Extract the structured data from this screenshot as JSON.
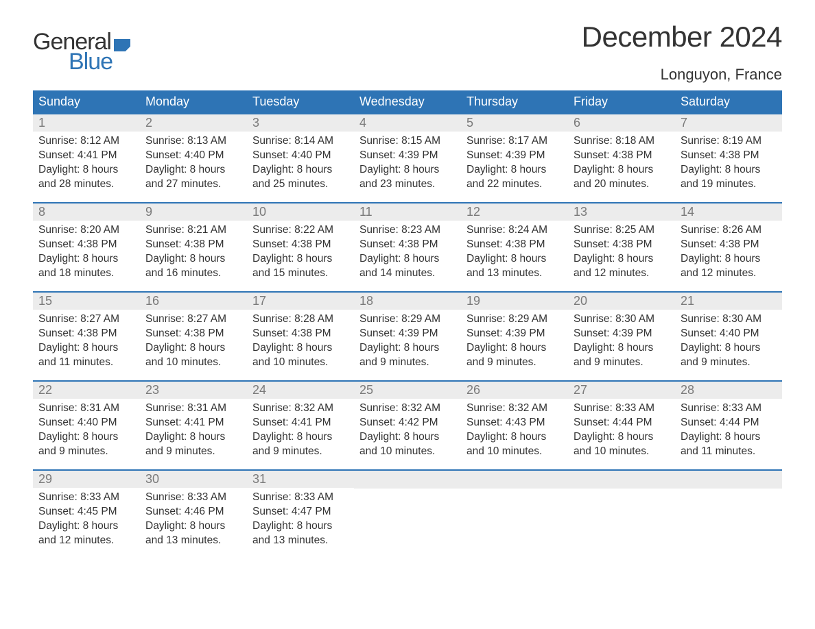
{
  "branding": {
    "general": "General",
    "blue": "Blue"
  },
  "header": {
    "month_title": "December 2024",
    "location": "Longuyon, France"
  },
  "style": {
    "accent_color": "#2e74b5",
    "daynum_bg": "#ececec",
    "daynum_color": "#7a7a7a",
    "text_color": "#333333",
    "bg_color": "#ffffff",
    "title_fontsize": 42,
    "location_fontsize": 22,
    "weekday_fontsize": 18,
    "body_fontsize": 15.5
  },
  "weekdays": [
    "Sunday",
    "Monday",
    "Tuesday",
    "Wednesday",
    "Thursday",
    "Friday",
    "Saturday"
  ],
  "weeks": [
    [
      {
        "n": "1",
        "sunrise": "Sunrise: 8:12 AM",
        "sunset": "Sunset: 4:41 PM",
        "d1": "Daylight: 8 hours",
        "d2": "and 28 minutes."
      },
      {
        "n": "2",
        "sunrise": "Sunrise: 8:13 AM",
        "sunset": "Sunset: 4:40 PM",
        "d1": "Daylight: 8 hours",
        "d2": "and 27 minutes."
      },
      {
        "n": "3",
        "sunrise": "Sunrise: 8:14 AM",
        "sunset": "Sunset: 4:40 PM",
        "d1": "Daylight: 8 hours",
        "d2": "and 25 minutes."
      },
      {
        "n": "4",
        "sunrise": "Sunrise: 8:15 AM",
        "sunset": "Sunset: 4:39 PM",
        "d1": "Daylight: 8 hours",
        "d2": "and 23 minutes."
      },
      {
        "n": "5",
        "sunrise": "Sunrise: 8:17 AM",
        "sunset": "Sunset: 4:39 PM",
        "d1": "Daylight: 8 hours",
        "d2": "and 22 minutes."
      },
      {
        "n": "6",
        "sunrise": "Sunrise: 8:18 AM",
        "sunset": "Sunset: 4:38 PM",
        "d1": "Daylight: 8 hours",
        "d2": "and 20 minutes."
      },
      {
        "n": "7",
        "sunrise": "Sunrise: 8:19 AM",
        "sunset": "Sunset: 4:38 PM",
        "d1": "Daylight: 8 hours",
        "d2": "and 19 minutes."
      }
    ],
    [
      {
        "n": "8",
        "sunrise": "Sunrise: 8:20 AM",
        "sunset": "Sunset: 4:38 PM",
        "d1": "Daylight: 8 hours",
        "d2": "and 18 minutes."
      },
      {
        "n": "9",
        "sunrise": "Sunrise: 8:21 AM",
        "sunset": "Sunset: 4:38 PM",
        "d1": "Daylight: 8 hours",
        "d2": "and 16 minutes."
      },
      {
        "n": "10",
        "sunrise": "Sunrise: 8:22 AM",
        "sunset": "Sunset: 4:38 PM",
        "d1": "Daylight: 8 hours",
        "d2": "and 15 minutes."
      },
      {
        "n": "11",
        "sunrise": "Sunrise: 8:23 AM",
        "sunset": "Sunset: 4:38 PM",
        "d1": "Daylight: 8 hours",
        "d2": "and 14 minutes."
      },
      {
        "n": "12",
        "sunrise": "Sunrise: 8:24 AM",
        "sunset": "Sunset: 4:38 PM",
        "d1": "Daylight: 8 hours",
        "d2": "and 13 minutes."
      },
      {
        "n": "13",
        "sunrise": "Sunrise: 8:25 AM",
        "sunset": "Sunset: 4:38 PM",
        "d1": "Daylight: 8 hours",
        "d2": "and 12 minutes."
      },
      {
        "n": "14",
        "sunrise": "Sunrise: 8:26 AM",
        "sunset": "Sunset: 4:38 PM",
        "d1": "Daylight: 8 hours",
        "d2": "and 12 minutes."
      }
    ],
    [
      {
        "n": "15",
        "sunrise": "Sunrise: 8:27 AM",
        "sunset": "Sunset: 4:38 PM",
        "d1": "Daylight: 8 hours",
        "d2": "and 11 minutes."
      },
      {
        "n": "16",
        "sunrise": "Sunrise: 8:27 AM",
        "sunset": "Sunset: 4:38 PM",
        "d1": "Daylight: 8 hours",
        "d2": "and 10 minutes."
      },
      {
        "n": "17",
        "sunrise": "Sunrise: 8:28 AM",
        "sunset": "Sunset: 4:38 PM",
        "d1": "Daylight: 8 hours",
        "d2": "and 10 minutes."
      },
      {
        "n": "18",
        "sunrise": "Sunrise: 8:29 AM",
        "sunset": "Sunset: 4:39 PM",
        "d1": "Daylight: 8 hours",
        "d2": "and 9 minutes."
      },
      {
        "n": "19",
        "sunrise": "Sunrise: 8:29 AM",
        "sunset": "Sunset: 4:39 PM",
        "d1": "Daylight: 8 hours",
        "d2": "and 9 minutes."
      },
      {
        "n": "20",
        "sunrise": "Sunrise: 8:30 AM",
        "sunset": "Sunset: 4:39 PM",
        "d1": "Daylight: 8 hours",
        "d2": "and 9 minutes."
      },
      {
        "n": "21",
        "sunrise": "Sunrise: 8:30 AM",
        "sunset": "Sunset: 4:40 PM",
        "d1": "Daylight: 8 hours",
        "d2": "and 9 minutes."
      }
    ],
    [
      {
        "n": "22",
        "sunrise": "Sunrise: 8:31 AM",
        "sunset": "Sunset: 4:40 PM",
        "d1": "Daylight: 8 hours",
        "d2": "and 9 minutes."
      },
      {
        "n": "23",
        "sunrise": "Sunrise: 8:31 AM",
        "sunset": "Sunset: 4:41 PM",
        "d1": "Daylight: 8 hours",
        "d2": "and 9 minutes."
      },
      {
        "n": "24",
        "sunrise": "Sunrise: 8:32 AM",
        "sunset": "Sunset: 4:41 PM",
        "d1": "Daylight: 8 hours",
        "d2": "and 9 minutes."
      },
      {
        "n": "25",
        "sunrise": "Sunrise: 8:32 AM",
        "sunset": "Sunset: 4:42 PM",
        "d1": "Daylight: 8 hours",
        "d2": "and 10 minutes."
      },
      {
        "n": "26",
        "sunrise": "Sunrise: 8:32 AM",
        "sunset": "Sunset: 4:43 PM",
        "d1": "Daylight: 8 hours",
        "d2": "and 10 minutes."
      },
      {
        "n": "27",
        "sunrise": "Sunrise: 8:33 AM",
        "sunset": "Sunset: 4:44 PM",
        "d1": "Daylight: 8 hours",
        "d2": "and 10 minutes."
      },
      {
        "n": "28",
        "sunrise": "Sunrise: 8:33 AM",
        "sunset": "Sunset: 4:44 PM",
        "d1": "Daylight: 8 hours",
        "d2": "and 11 minutes."
      }
    ],
    [
      {
        "n": "29",
        "sunrise": "Sunrise: 8:33 AM",
        "sunset": "Sunset: 4:45 PM",
        "d1": "Daylight: 8 hours",
        "d2": "and 12 minutes."
      },
      {
        "n": "30",
        "sunrise": "Sunrise: 8:33 AM",
        "sunset": "Sunset: 4:46 PM",
        "d1": "Daylight: 8 hours",
        "d2": "and 13 minutes."
      },
      {
        "n": "31",
        "sunrise": "Sunrise: 8:33 AM",
        "sunset": "Sunset: 4:47 PM",
        "d1": "Daylight: 8 hours",
        "d2": "and 13 minutes."
      },
      {
        "empty": true
      },
      {
        "empty": true
      },
      {
        "empty": true
      },
      {
        "empty": true
      }
    ]
  ]
}
